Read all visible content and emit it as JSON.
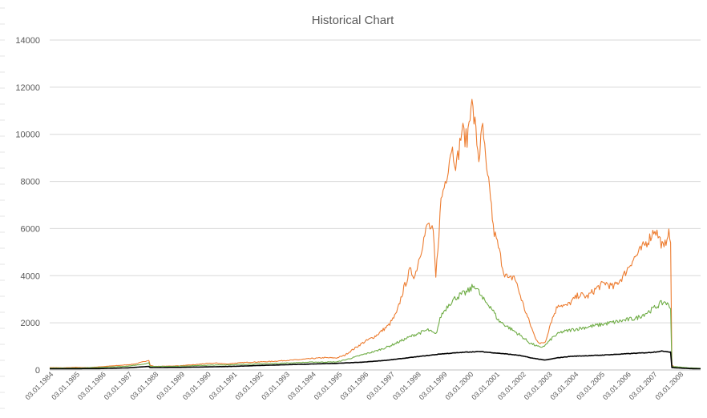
{
  "chart_data": {
    "type": "line",
    "title": "Historical Chart",
    "xlabel": "",
    "ylabel": "",
    "ylim": [
      0,
      14000
    ],
    "yticks": [
      0,
      2000,
      4000,
      6000,
      8000,
      10000,
      12000,
      14000
    ],
    "xticks": [
      "03.01.1984",
      "03.01.1985",
      "03.01.1986",
      "03.01.1987",
      "03.01.1988",
      "03.01.1989",
      "03.01.1990",
      "03.01.1991",
      "03.01.1992",
      "03.01.1993",
      "03.01.1994",
      "03.01.1995",
      "03.01.1996",
      "03.01.1997",
      "03.01.1998",
      "03.01.1999",
      "03.01.2000",
      "03.01.2001",
      "03.01.2002",
      "03.01.2003",
      "03.01.2004",
      "03.01.2005",
      "03.01.2006",
      "03.01.2007",
      "03.01.2008"
    ],
    "xlim": [
      1984.0,
      2008.95
    ],
    "grid": true,
    "legend": "none",
    "series": [
      {
        "color": "#ed7d31",
        "x": [
          1984.0,
          1984.5,
          1985.0,
          1985.5,
          1986.0,
          1986.5,
          1987.0,
          1987.3,
          1987.6,
          1987.8,
          1987.85,
          1988.0,
          1988.5,
          1989.0,
          1989.5,
          1990.0,
          1990.4,
          1990.8,
          1991.0,
          1991.5,
          1992.0,
          1992.5,
          1993.0,
          1993.5,
          1994.0,
          1994.5,
          1995.0,
          1995.3,
          1995.6,
          1996.0,
          1996.5,
          1997.0,
          1997.3,
          1997.5,
          1997.8,
          1998.0,
          1998.3,
          1998.5,
          1998.7,
          1998.8,
          1999.0,
          1999.2,
          1999.4,
          1999.6,
          1999.8,
          2000.0,
          2000.15,
          2000.3,
          2000.45,
          2000.6,
          2000.75,
          2000.9,
          2001.0,
          2001.2,
          2001.4,
          2001.6,
          2001.8,
          2002.0,
          2002.2,
          2002.4,
          2002.6,
          2002.8,
          2003.0,
          2003.2,
          2003.5,
          2003.8,
          2004.0,
          2004.3,
          2004.6,
          2005.0,
          2005.3,
          2005.6,
          2006.0,
          2006.3,
          2006.6,
          2007.0,
          2007.2,
          2007.4,
          2007.55,
          2007.7,
          2007.8,
          2007.85,
          2008.0,
          2008.5,
          2008.95
        ],
        "values": [
          100,
          90,
          110,
          100,
          140,
          180,
          220,
          260,
          350,
          420,
          200,
          150,
          160,
          180,
          220,
          270,
          290,
          250,
          280,
          320,
          340,
          360,
          400,
          430,
          480,
          520,
          510,
          620,
          850,
          1150,
          1450,
          1900,
          2400,
          3200,
          4200,
          4000,
          5400,
          6200,
          5800,
          3900,
          7200,
          8200,
          9500,
          8700,
          10200,
          9700,
          11500,
          10400,
          9000,
          10300,
          8300,
          7400,
          6000,
          5200,
          4200,
          3800,
          4000,
          3300,
          2600,
          2000,
          1400,
          1100,
          1200,
          2000,
          2800,
          2700,
          2900,
          3200,
          3100,
          3500,
          3700,
          3500,
          4000,
          4600,
          5000,
          5600,
          6000,
          5500,
          5100,
          5900,
          5400,
          200,
          100,
          80,
          60
        ]
      },
      {
        "color": "#70ad47",
        "x": [
          1984.0,
          1985.0,
          1986.0,
          1987.0,
          1987.6,
          1987.8,
          1987.85,
          1988.5,
          1989.0,
          1990.0,
          1991.0,
          1992.0,
          1993.0,
          1994.0,
          1995.0,
          1995.5,
          1996.0,
          1996.5,
          1997.0,
          1997.5,
          1998.0,
          1998.5,
          1998.8,
          1999.0,
          1999.3,
          1999.6,
          2000.0,
          2000.3,
          2000.6,
          2000.9,
          2001.2,
          2001.6,
          2002.0,
          2002.4,
          2002.8,
          2003.0,
          2003.3,
          2003.6,
          2004.0,
          2004.5,
          2005.0,
          2005.5,
          2006.0,
          2006.5,
          2007.0,
          2007.4,
          2007.6,
          2007.8,
          2007.85,
          2008.5,
          2008.95
        ],
        "values": [
          80,
          80,
          110,
          160,
          250,
          300,
          150,
          150,
          160,
          200,
          220,
          260,
          290,
          330,
          340,
          480,
          650,
          800,
          1000,
          1250,
          1500,
          1700,
          1500,
          2300,
          2800,
          3100,
          3300,
          3600,
          3000,
          2700,
          2100,
          1800,
          1500,
          1150,
          950,
          1050,
          1400,
          1600,
          1700,
          1800,
          1900,
          2000,
          2100,
          2200,
          2500,
          2800,
          2900,
          2600,
          150,
          90,
          70
        ]
      },
      {
        "color": "#000000",
        "x": [
          1984.0,
          1986.0,
          1987.0,
          1987.8,
          1987.85,
          1989.0,
          1990.0,
          1991.0,
          1992.0,
          1993.0,
          1994.0,
          1995.0,
          1996.0,
          1997.0,
          1998.0,
          1999.0,
          2000.0,
          2000.5,
          2001.0,
          2001.5,
          2002.0,
          2002.5,
          2003.0,
          2003.5,
          2004.0,
          2005.0,
          2006.0,
          2007.0,
          2007.5,
          2007.8,
          2007.85,
          2008.5,
          2008.95
        ],
        "values": [
          50,
          60,
          90,
          150,
          100,
          110,
          130,
          150,
          190,
          220,
          250,
          280,
          330,
          420,
          550,
          680,
          760,
          780,
          730,
          680,
          620,
          500,
          420,
          520,
          580,
          620,
          680,
          740,
          800,
          760,
          100,
          60,
          50
        ]
      }
    ]
  }
}
